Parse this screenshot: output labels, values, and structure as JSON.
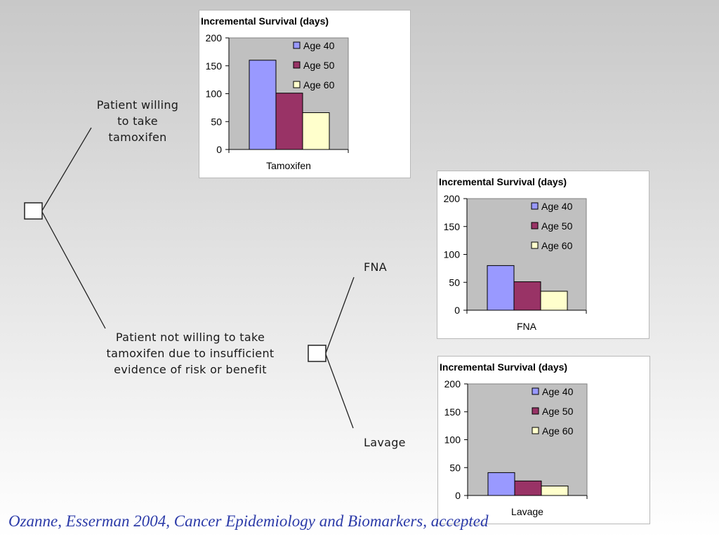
{
  "tree": {
    "branch_tamoxifen": "Patient willing to take tamoxifen",
    "branch_tamoxifen_lines": [
      "Patient willing",
      "to take",
      "tamoxifen"
    ],
    "branch_no_tamoxifen": "Patient not willing to take tamoxifen due to insufficient evidence of risk or benefit",
    "branch_no_tamoxifen_lines": [
      "Patient not willing to take",
      "tamoxifen due to insufficient",
      "evidence of risk or benefit"
    ],
    "option_fna": "FNA",
    "option_lavage": "Lavage"
  },
  "citation": "Ozanne, Esserman 2004, Cancer Epidemiology and Biomarkers, accepted",
  "colors": {
    "age40": "#9999ff",
    "age50": "#993366",
    "age60": "#ffffcc",
    "plot_area": "#c0c0c0",
    "citation": "#2b3aa8"
  },
  "chart_data": [
    {
      "type": "bar",
      "title": "Incremental Survival (days)",
      "categories": [
        "Tamoxifen"
      ],
      "series": [
        {
          "name": "Age 40",
          "values": [
            160
          ]
        },
        {
          "name": "Age 50",
          "values": [
            101
          ]
        },
        {
          "name": "Age 60",
          "values": [
            66
          ]
        }
      ],
      "ylim": [
        0,
        200
      ],
      "yticks": [
        0,
        50,
        100,
        150,
        200
      ],
      "grid": false,
      "legend": "top-right inside plot"
    },
    {
      "type": "bar",
      "title": "Incremental Survival (days)",
      "categories": [
        "FNA"
      ],
      "series": [
        {
          "name": "Age 40",
          "values": [
            80
          ]
        },
        {
          "name": "Age 50",
          "values": [
            51
          ]
        },
        {
          "name": "Age 60",
          "values": [
            34
          ]
        }
      ],
      "ylim": [
        0,
        200
      ],
      "yticks": [
        0,
        50,
        100,
        150,
        200
      ],
      "grid": false,
      "legend": "top-right inside plot"
    },
    {
      "type": "bar",
      "title": "Incremental Survival (days)",
      "categories": [
        "Lavage"
      ],
      "series": [
        {
          "name": "Age 40",
          "values": [
            41
          ]
        },
        {
          "name": "Age 50",
          "values": [
            26
          ]
        },
        {
          "name": "Age 60",
          "values": [
            17
          ]
        }
      ],
      "ylim": [
        0,
        200
      ],
      "yticks": [
        0,
        50,
        100,
        150,
        200
      ],
      "grid": false,
      "legend": "top-right inside plot"
    }
  ]
}
